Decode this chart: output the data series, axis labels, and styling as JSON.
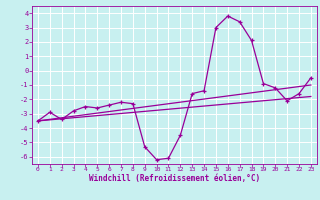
{
  "title": "",
  "xlabel": "Windchill (Refroidissement éolien,°C)",
  "bg_color": "#c8f0f0",
  "line_color": "#990099",
  "grid_color": "#ffffff",
  "hours": [
    0,
    1,
    2,
    3,
    4,
    5,
    6,
    7,
    8,
    9,
    10,
    11,
    12,
    13,
    14,
    15,
    16,
    17,
    18,
    19,
    20,
    21,
    22,
    23
  ],
  "windchill": [
    -3.5,
    -2.9,
    -3.4,
    -2.8,
    -2.5,
    -2.6,
    -2.4,
    -2.2,
    -2.3,
    -5.3,
    -6.2,
    -6.1,
    -4.5,
    -1.6,
    -1.4,
    3.0,
    3.8,
    3.4,
    2.1,
    -0.9,
    -1.2,
    -2.1,
    -1.6,
    -0.5
  ],
  "trend1_x": [
    0,
    23
  ],
  "trend1_y": [
    -3.5,
    -1.0
  ],
  "trend2_x": [
    0,
    23
  ],
  "trend2_y": [
    -3.5,
    -1.8
  ],
  "ylim": [
    -6.5,
    4.5
  ],
  "xlim": [
    -0.5,
    23.5
  ],
  "yticks": [
    -6,
    -5,
    -4,
    -3,
    -2,
    -1,
    0,
    1,
    2,
    3,
    4
  ],
  "xticks": [
    0,
    1,
    2,
    3,
    4,
    5,
    6,
    7,
    8,
    9,
    10,
    11,
    12,
    13,
    14,
    15,
    16,
    17,
    18,
    19,
    20,
    21,
    22,
    23
  ]
}
